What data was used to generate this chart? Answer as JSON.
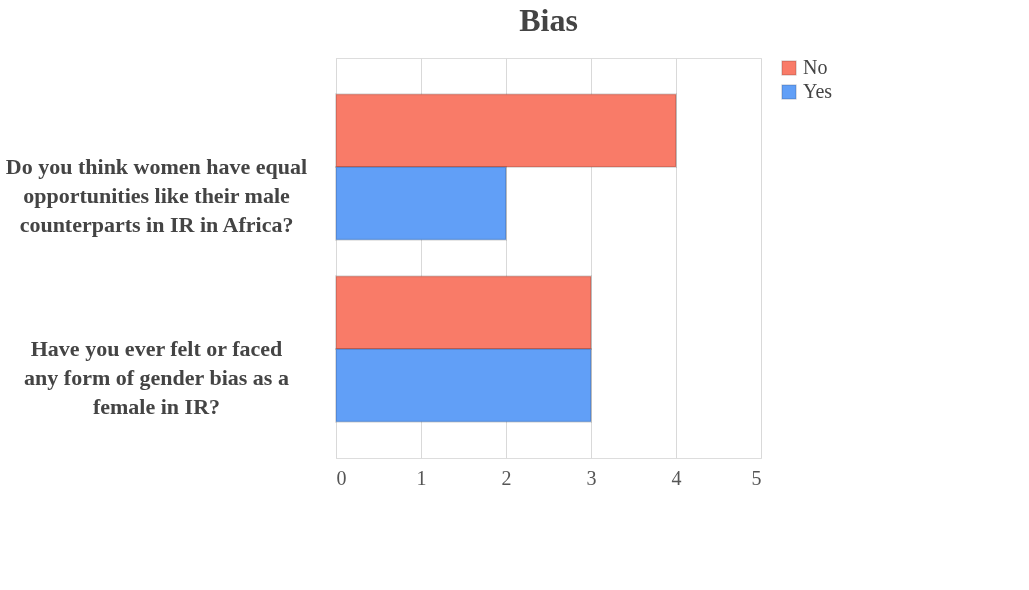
{
  "chart_data": {
    "type": "bar",
    "orientation": "horizontal",
    "title": "Bias",
    "categories": [
      "Do you think women have equal opportunities like  their male counterparts in IR in Africa?",
      "Have you ever felt or faced any form of gender bias as a female in IR?"
    ],
    "series": [
      {
        "name": "No",
        "color": "#f97b68",
        "values": [
          4,
          3
        ]
      },
      {
        "name": "Yes",
        "color": "#619ff7",
        "values": [
          2,
          3
        ]
      }
    ],
    "xlim": [
      0,
      5
    ],
    "xticks": [
      0,
      1,
      2,
      3,
      4,
      5
    ],
    "grid": "x",
    "legend": "right"
  }
}
